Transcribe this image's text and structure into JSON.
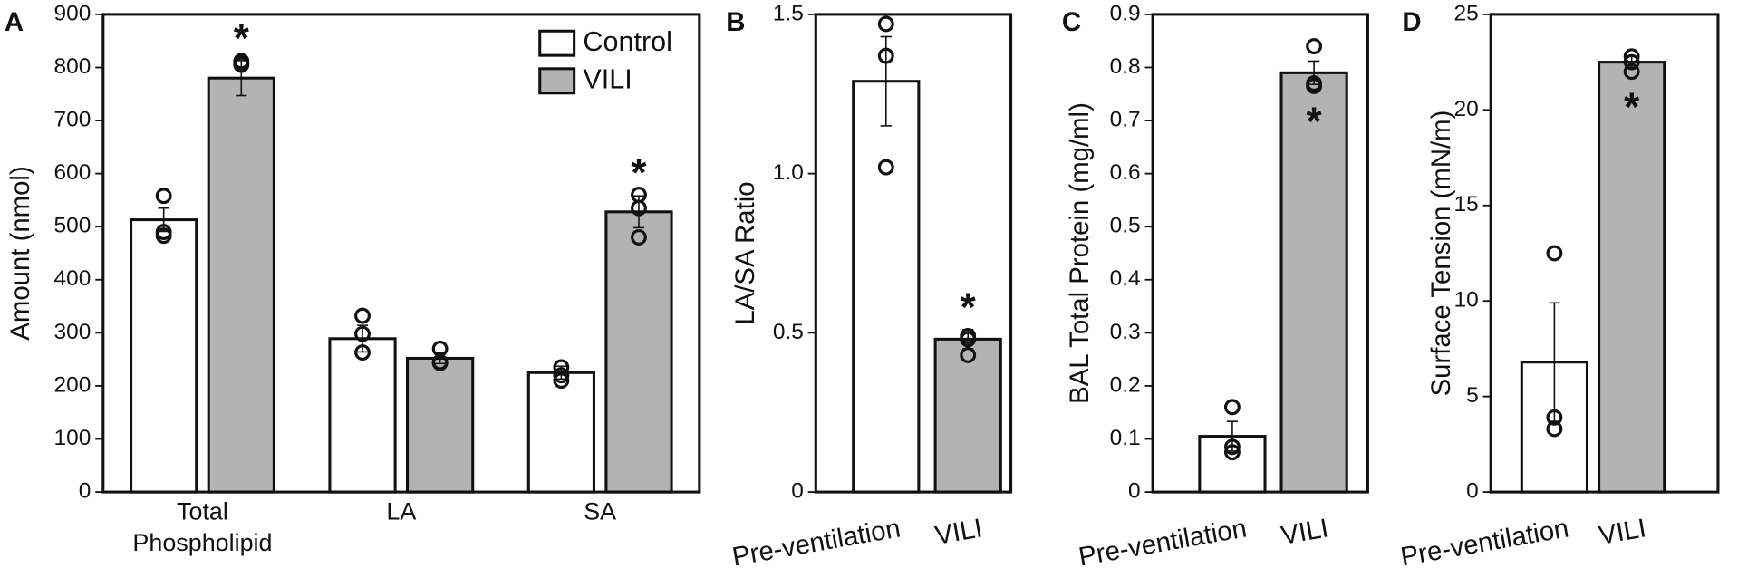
{
  "chart_data": [
    {
      "type": "bar",
      "panel": "A",
      "ylabel": "Amount (nmol)",
      "categories": [
        "Total Phospholipid",
        "LA",
        "SA"
      ],
      "series": [
        {
          "name": "Control",
          "color": "#ffffff",
          "values": [
            513,
            289,
            225
          ],
          "errors": [
            22,
            25,
            12
          ],
          "points": [
            [
              558,
              490,
              483
            ],
            [
              332,
              298,
              263
            ],
            [
              235,
              220,
              210
            ]
          ],
          "labels": [
            null,
            null,
            null
          ]
        },
        {
          "name": "VILI",
          "color": "#b3b3b3",
          "values": [
            780,
            252,
            528
          ],
          "errors": [
            33,
            10,
            30
          ],
          "points": [
            [
              812,
              808,
              805
            ],
            [
              270,
              245,
              243
            ],
            [
              560,
              535,
              480
            ]
          ],
          "labels": [
            "*",
            null,
            "*"
          ]
        }
      ],
      "label_position": "above",
      "legend": "upper right",
      "ylim": [
        0,
        900
      ],
      "yticks": [
        0,
        100,
        200,
        300,
        400,
        500,
        600,
        700,
        800,
        900
      ]
    },
    {
      "type": "bar",
      "panel": "B",
      "ylabel": "LA/SA Ratio",
      "categories": [
        "Pre-ventilation",
        "VILI"
      ],
      "colors": [
        "#ffffff",
        "#b3b3b3"
      ],
      "values": [
        1.29,
        0.48
      ],
      "errors": [
        0.14,
        0.03
      ],
      "points": [
        [
          1.47,
          1.37,
          1.02
        ],
        [
          0.49,
          0.48,
          0.43
        ]
      ],
      "labels": [
        null,
        "*"
      ],
      "label_position": "above",
      "ylim": [
        0,
        1.5
      ],
      "yticks": [
        0,
        0.5,
        {
          "value": 1.0,
          "label": "1.0"
        },
        1.5
      ]
    },
    {
      "type": "bar",
      "panel": "C",
      "ylabel": "BAL Total Protein (mg/ml)",
      "categories": [
        "Pre-ventilation",
        "VILI"
      ],
      "colors": [
        "#ffffff",
        "#b3b3b3"
      ],
      "values": [
        0.105,
        0.79
      ],
      "errors": [
        0.028,
        0.022
      ],
      "points": [
        [
          0.16,
          0.085,
          0.075
        ],
        [
          0.84,
          0.77,
          0.765
        ]
      ],
      "labels": [
        null,
        "*"
      ],
      "label_position": "below",
      "ylim": [
        0,
        0.9
      ],
      "yticks": [
        0,
        0.1,
        0.2,
        0.3,
        0.4,
        0.5,
        0.6,
        0.7,
        0.8,
        0.9
      ]
    },
    {
      "type": "bar",
      "panel": "D",
      "ylabel": "Surface Tension (mN/m)",
      "categories": [
        "Pre-ventilation",
        "VILI"
      ],
      "colors": [
        "#ffffff",
        "#b3b3b3"
      ],
      "values": [
        6.8,
        22.5
      ],
      "errors": [
        3.1,
        0.3
      ],
      "points": [
        [
          12.5,
          3.9,
          3.3
        ],
        [
          22.8,
          22.5,
          22.0
        ]
      ],
      "labels": [
        null,
        "*"
      ],
      "label_position": "below",
      "ylim": [
        0,
        25
      ],
      "yticks": [
        0,
        5,
        10,
        15,
        20,
        25
      ]
    }
  ]
}
